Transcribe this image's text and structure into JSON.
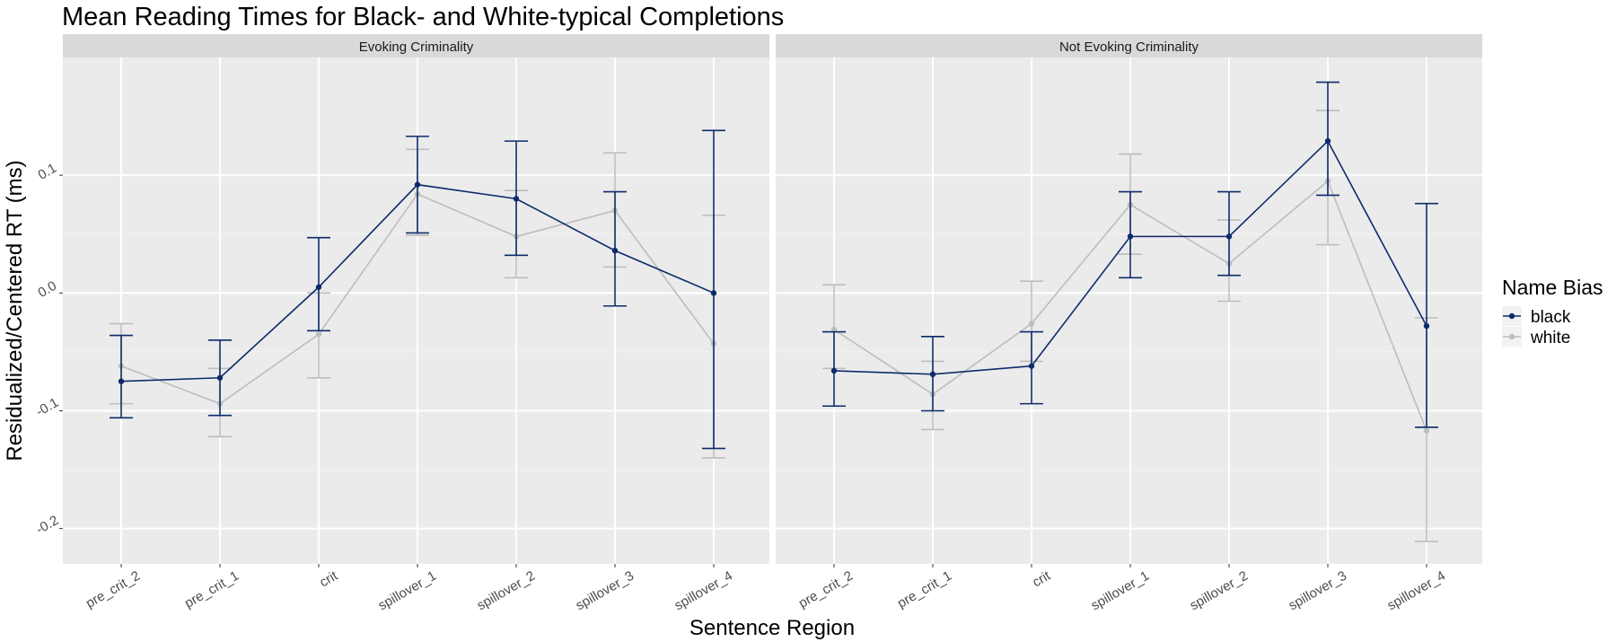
{
  "chart_data": {
    "type": "line",
    "title": "Mean Reading Times for Black- and White-typical Completions",
    "xlabel": "Sentence Region",
    "ylabel": "Residualized/Centered RT (ms)",
    "categories": [
      "pre_crit_2",
      "pre_crit_1",
      "crit",
      "spillover_1",
      "spillover_2",
      "spillover_3",
      "spillover_4"
    ],
    "ylim": [
      -0.23,
      0.2
    ],
    "yticks": [
      -0.2,
      -0.1,
      0.0,
      0.1
    ],
    "ytick_labels": [
      "-0.2",
      "-0.1",
      "0.0",
      "0.1"
    ],
    "grid": true,
    "legend": {
      "title": "Name Bias",
      "position": "right",
      "entries": [
        {
          "name": "black",
          "color": "#0d2b6b"
        },
        {
          "name": "white",
          "color": "#bdbdbd"
        }
      ]
    },
    "panels": [
      {
        "strip": "Evoking Criminality",
        "series": [
          {
            "name": "black",
            "color": "#0d2b6b",
            "values": [
              -0.075,
              -0.072,
              0.005,
              0.092,
              0.08,
              0.036,
              0.0
            ],
            "lower": [
              -0.106,
              -0.104,
              -0.032,
              0.051,
              0.032,
              -0.011,
              -0.132
            ],
            "upper": [
              -0.036,
              -0.04,
              0.047,
              0.133,
              0.129,
              0.086,
              0.138
            ]
          },
          {
            "name": "white",
            "color": "#bdbdbd",
            "values": [
              -0.062,
              -0.094,
              -0.035,
              0.084,
              0.048,
              0.07,
              -0.043
            ],
            "lower": [
              -0.094,
              -0.122,
              -0.072,
              0.049,
              0.013,
              0.022,
              -0.14
            ],
            "upper": [
              -0.026,
              -0.064,
              0.0,
              0.122,
              0.087,
              0.119,
              0.066
            ]
          }
        ]
      },
      {
        "strip": "Not Evoking Criminality",
        "series": [
          {
            "name": "black",
            "color": "#0d2b6b",
            "values": [
              -0.066,
              -0.069,
              -0.062,
              0.048,
              0.048,
              0.129,
              -0.028
            ],
            "lower": [
              -0.096,
              -0.1,
              -0.094,
              0.013,
              0.015,
              0.083,
              -0.114
            ],
            "upper": [
              -0.033,
              -0.037,
              -0.033,
              0.086,
              0.086,
              0.179,
              0.076
            ]
          },
          {
            "name": "white",
            "color": "#bdbdbd",
            "values": [
              -0.031,
              -0.086,
              -0.026,
              0.075,
              0.025,
              0.095,
              -0.117
            ],
            "lower": [
              -0.064,
              -0.116,
              -0.058,
              0.033,
              -0.007,
              0.041,
              -0.211
            ],
            "upper": [
              0.007,
              -0.058,
              0.01,
              0.118,
              0.062,
              0.155,
              -0.021
            ]
          }
        ]
      }
    ]
  }
}
